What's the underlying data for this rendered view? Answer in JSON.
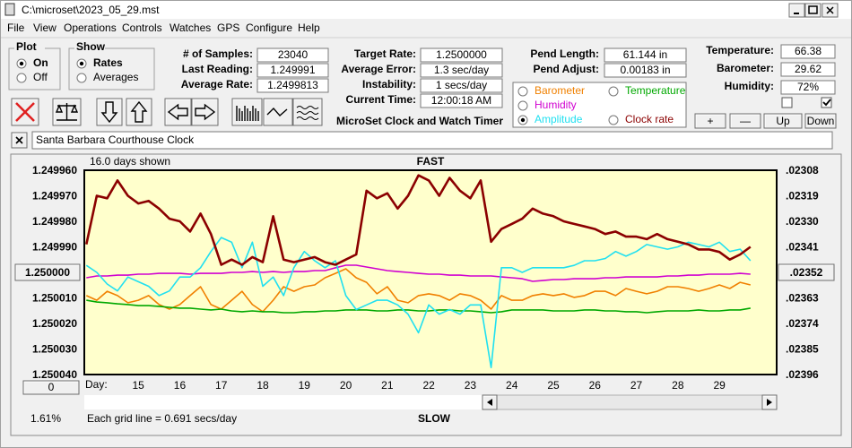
{
  "window": {
    "title": "C:\\microset\\2023_05_29.mst"
  },
  "menu": [
    "File",
    "View",
    "Operations",
    "Controls",
    "Watches",
    "GPS",
    "Configure",
    "Help"
  ],
  "plot_group": {
    "label": "Plot",
    "options": [
      "On",
      "Off"
    ],
    "selected": 0
  },
  "show_group": {
    "label": "Show",
    "options": [
      "Rates",
      "Averages"
    ],
    "selected": 0
  },
  "stats": [
    {
      "label": "# of Samples:",
      "value": "23040"
    },
    {
      "label": "Last Reading:",
      "value": "1.249991"
    },
    {
      "label": "Average Rate:",
      "value": "1.2499813"
    }
  ],
  "rates": [
    {
      "label": "Target Rate:",
      "value": "1.2500000"
    },
    {
      "label": "Average Error:",
      "value": "1.3 sec/day"
    },
    {
      "label": "Instability:",
      "value": "1 secs/day"
    },
    {
      "label": "Current Time:",
      "value": "12:00:18 AM"
    }
  ],
  "app_name": "MicroSet Clock and Watch Timer",
  "pendulum": [
    {
      "label": "Pend Length:",
      "value": "61.144 in"
    },
    {
      "label": "Pend Adjust:",
      "value": "0.00183 in"
    }
  ],
  "environment": [
    {
      "label": "Temperature:",
      "value": "66.38"
    },
    {
      "label": "Barometer:",
      "value": "29.62"
    },
    {
      "label": "Humidity:",
      "value": "72%"
    }
  ],
  "env_checks": [
    false,
    true
  ],
  "env_buttons": [
    "+",
    "—",
    "Up",
    "Down"
  ],
  "clock_name": "Santa Barbara Courthouse Clock",
  "chart_data": {
    "type": "line",
    "top_label": "FAST",
    "bottom_label": "SLOW",
    "days_shown": "16.0 days shown",
    "grid_note": "Each grid line = 0.691 secs/day",
    "x_label": "Day:",
    "percent": "1.61%",
    "offset_button": "0",
    "selected_series": 3,
    "y_inverted": true,
    "grid": false,
    "xlim": [
      13.7,
      30.38
    ],
    "xticks": [
      15,
      16,
      17,
      18,
      19,
      20,
      21,
      22,
      23,
      24,
      25,
      26,
      27,
      28,
      29
    ],
    "ylim": [
      1.24996,
      1.25004
    ],
    "yticks": [
      {
        "value": 1.24996,
        "label": "1.249960"
      },
      {
        "value": 1.24997,
        "label": "1.249970"
      },
      {
        "value": 1.24998,
        "label": "1.249980"
      },
      {
        "value": 1.24999,
        "label": "1.249990"
      },
      {
        "value": 1.25,
        "label": "1.250000"
      },
      {
        "value": 1.25001,
        "label": "1.250010"
      },
      {
        "value": 1.25002,
        "label": "1.250020"
      },
      {
        "value": 1.25003,
        "label": "1.250030"
      },
      {
        "value": 1.25004,
        "label": "1.250040"
      }
    ],
    "y2lim": [
      0.02308,
      0.02396
    ],
    "y2ticks": [
      {
        "value": 0.02308,
        "label": ".02308"
      },
      {
        "value": 0.02319,
        "label": ".02319"
      },
      {
        "value": 0.0233,
        "label": ".02330"
      },
      {
        "value": 0.02341,
        "label": ".02341"
      },
      {
        "value": 0.02352,
        "label": ".02352"
      },
      {
        "value": 0.02363,
        "label": ".02363"
      },
      {
        "value": 0.02374,
        "label": ".02374"
      },
      {
        "value": 0.02385,
        "label": ".02385"
      },
      {
        "value": 0.02396,
        "label": ".02396"
      }
    ],
    "x": [
      13.75,
      14,
      14.25,
      14.5,
      14.75,
      15,
      15.25,
      15.5,
      15.75,
      16,
      16.25,
      16.5,
      16.75,
      17,
      17.25,
      17.5,
      17.75,
      18,
      18.25,
      18.5,
      18.75,
      19,
      19.25,
      19.5,
      19.75,
      20,
      20.25,
      20.5,
      20.75,
      21,
      21.25,
      21.5,
      21.75,
      22,
      22.25,
      22.5,
      22.75,
      23,
      23.25,
      23.5,
      23.75,
      24,
      24.25,
      24.5,
      24.75,
      25,
      25.25,
      25.5,
      25.75,
      26,
      26.25,
      26.5,
      26.75,
      27,
      27.25,
      27.5,
      27.75,
      28,
      28.25,
      28.5,
      28.75,
      29,
      29.25,
      29.5,
      29.75
    ],
    "series": [
      {
        "name": "Barometer",
        "color": "#f08000",
        "values": [
          1.2500091,
          1.2500109,
          1.2500074,
          1.2500091,
          1.2500119,
          1.2500109,
          1.2500091,
          1.2500126,
          1.2500144,
          1.2500126,
          1.2500091,
          1.2500056,
          1.2500126,
          1.2500144,
          1.2500109,
          1.2500074,
          1.2500126,
          1.2500154,
          1.2500109,
          1.2500056,
          1.2500074,
          1.2500056,
          1.2500049,
          1.2500021,
          1.2500004,
          1.2499986,
          1.2500021,
          1.2500039,
          1.2500084,
          1.2500056,
          1.2500109,
          1.2500119,
          1.2500091,
          1.2500084,
          1.2500091,
          1.2500109,
          1.2500084,
          1.2500091,
          1.2500109,
          1.2500144,
          1.2500091,
          1.2500109,
          1.2500109,
          1.2500091,
          1.2500084,
          1.2500091,
          1.2500084,
          1.2500098,
          1.2500091,
          1.2500074,
          1.2500074,
          1.2500091,
          1.2500063,
          1.2500074,
          1.2500084,
          1.2500074,
          1.2500056,
          1.2500056,
          1.2500063,
          1.2500074,
          1.2500063,
          1.2500049,
          1.2500063,
          1.2500039,
          1.2500049
        ]
      },
      {
        "name": "Temperature",
        "color": "#00a800",
        "values": [
          1.2500109,
          1.2500116,
          1.2500119,
          1.2500123,
          1.2500126,
          1.250013,
          1.250013,
          1.2500133,
          1.2500137,
          1.250014,
          1.250014,
          1.2500144,
          1.2500147,
          1.2500144,
          1.2500151,
          1.2500154,
          1.2500151,
          1.2500154,
          1.2500154,
          1.2500158,
          1.2500158,
          1.2500154,
          1.2500154,
          1.2500151,
          1.2500151,
          1.2500147,
          1.2500147,
          1.2500147,
          1.2500151,
          1.2500151,
          1.2500147,
          1.2500147,
          1.2500151,
          1.2500151,
          1.2500147,
          1.2500147,
          1.2500151,
          1.2500151,
          1.2500154,
          1.2500158,
          1.2500154,
          1.2500147,
          1.2500147,
          1.2500147,
          1.2500147,
          1.2500151,
          1.2500151,
          1.2500151,
          1.2500147,
          1.2500147,
          1.2500151,
          1.2500151,
          1.2500154,
          1.2500154,
          1.2500158,
          1.2500154,
          1.2500151,
          1.2500151,
          1.2500151,
          1.2500147,
          1.2500151,
          1.2500151,
          1.2500147,
          1.2500147,
          1.250014
        ]
      },
      {
        "name": "Humidity",
        "color": "#d000d0",
        "values": [
          1.2500021,
          1.2500014,
          1.2500014,
          1.2500011,
          1.2500011,
          1.2500007,
          1.2500007,
          1.2500004,
          1.2500004,
          1.2500004,
          1.2500007,
          1.2500004,
          1.2500004,
          1.2500004,
          1.25,
          1.25,
          1.2499997,
          1.25,
          1.2499997,
          1.25,
          1.2499997,
          1.2499997,
          1.2499993,
          1.2499993,
          1.2499982,
          1.2499972,
          1.2499972,
          1.2499979,
          1.2499986,
          1.2499993,
          1.2499997,
          1.25,
          1.2500004,
          1.2500007,
          1.2500007,
          1.2500011,
          1.2500011,
          1.2500014,
          1.2500014,
          1.2500014,
          1.2500018,
          1.2500021,
          1.2500025,
          1.2500035,
          1.2500032,
          1.2500028,
          1.2500028,
          1.2500025,
          1.2500025,
          1.2500025,
          1.2500021,
          1.2500021,
          1.2500018,
          1.2500018,
          1.2500018,
          1.2500018,
          1.2500014,
          1.2500014,
          1.2500011,
          1.2500011,
          1.2500007,
          1.2500007,
          1.2500007,
          1.2500004,
          1.2500007
        ]
      },
      {
        "name": "Amplitude",
        "color": "#20e0f0",
        "axis": "y2",
        "values": [
          0.02349,
          0.02352,
          0.02357,
          0.0236,
          0.02354,
          0.02356,
          0.02358,
          0.02362,
          0.0236,
          0.02354,
          0.02354,
          0.0235,
          0.02343,
          0.02337,
          0.02339,
          0.0235,
          0.02339,
          0.02358,
          0.02354,
          0.02362,
          0.0235,
          0.02343,
          0.02347,
          0.0235,
          0.02347,
          0.02362,
          0.02368,
          0.02366,
          0.02364,
          0.02364,
          0.02366,
          0.0237,
          0.02378,
          0.02366,
          0.0237,
          0.02368,
          0.0237,
          0.02366,
          0.02366,
          0.02393,
          0.0235,
          0.0235,
          0.02352,
          0.0235,
          0.0235,
          0.0235,
          0.0235,
          0.02349,
          0.02347,
          0.02347,
          0.02346,
          0.02343,
          0.02345,
          0.02343,
          0.0234,
          0.02341,
          0.02342,
          0.02341,
          0.02339,
          0.0234,
          0.02341,
          0.02339,
          0.02343,
          0.02342,
          0.02347
        ]
      },
      {
        "name": "Clock rate",
        "color": "#8b0000",
        "values": [
          1.249989,
          1.24997,
          1.249971,
          1.249964,
          1.24997,
          1.249973,
          1.249972,
          1.249975,
          1.249979,
          1.24998,
          1.249984,
          1.249977,
          1.249985,
          1.249997,
          1.249995,
          1.249997,
          1.249994,
          1.249996,
          1.249978,
          1.249995,
          1.249996,
          1.249995,
          1.249994,
          1.249996,
          1.249997,
          1.249995,
          1.249993,
          1.249968,
          1.249971,
          1.249969,
          1.249975,
          1.24997,
          1.249962,
          1.249964,
          1.24997,
          1.249963,
          1.249968,
          1.249971,
          1.249964,
          1.249988,
          1.249983,
          1.249981,
          1.249979,
          1.249975,
          1.249977,
          1.249978,
          1.24998,
          1.249981,
          1.249982,
          1.249983,
          1.249985,
          1.249984,
          1.249986,
          1.249986,
          1.249987,
          1.249985,
          1.249987,
          1.249988,
          1.249989,
          1.249991,
          1.249991,
          1.249992,
          1.249995,
          1.249993,
          1.24999
        ]
      }
    ]
  }
}
